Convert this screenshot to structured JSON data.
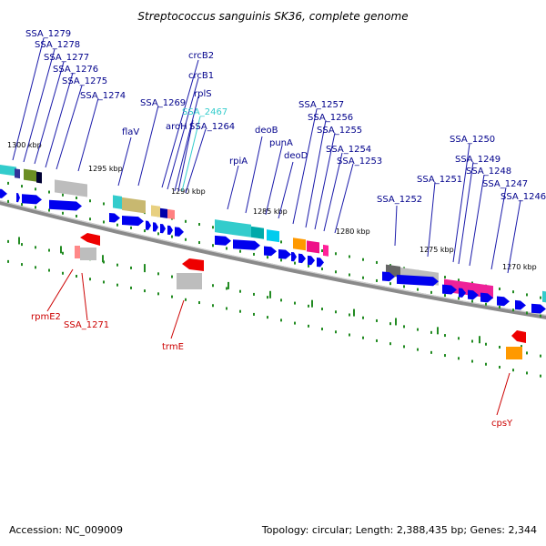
{
  "title": "Streptococcus sanguinis SK36, complete genome",
  "footer": {
    "accession": "Accession: NC_009009",
    "summary": "Topology: circular; Length: 2,388,435 bp; Genes: 2,344"
  },
  "colors": {
    "forward_label": "#00008b",
    "reverse_label": "#cc0000",
    "highlight_label": "#33cccc",
    "cds_forward": "#0000ee",
    "cds_reverse": "#ee0000",
    "tick": "#228b22",
    "backbone": "#888888"
  },
  "scale_labels": [
    "1300 kbp",
    "1295 kbp",
    "1290 kbp",
    "1285 kbp",
    "1280 kbp",
    "1275 kbp",
    "1270 kbp"
  ],
  "forward_genes": [
    {
      "name": "SSA_1279",
      "color": "navy"
    },
    {
      "name": "SSA_1278",
      "color": "navy"
    },
    {
      "name": "SSA_1277",
      "color": "navy"
    },
    {
      "name": "SSA_1276",
      "color": "navy"
    },
    {
      "name": "SSA_1275",
      "color": "navy"
    },
    {
      "name": "SSA_1274",
      "color": "navy"
    },
    {
      "name": "flaV",
      "color": "navy"
    },
    {
      "name": "SSA_1269",
      "color": "navy"
    },
    {
      "name": "crcB2",
      "color": "navy"
    },
    {
      "name": "crcB1",
      "color": "navy"
    },
    {
      "name": "rplS",
      "color": "navy"
    },
    {
      "name": "SSA_2467",
      "color": "cyan"
    },
    {
      "name": "aroH",
      "color": "navy"
    },
    {
      "name": "SSA_1264",
      "color": "navy"
    },
    {
      "name": "rpiA",
      "color": "navy"
    },
    {
      "name": "deoB",
      "color": "navy"
    },
    {
      "name": "punA",
      "color": "navy"
    },
    {
      "name": "deoD",
      "color": "navy"
    },
    {
      "name": "SSA_1257",
      "color": "navy"
    },
    {
      "name": "SSA_1256",
      "color": "navy"
    },
    {
      "name": "SSA_1255",
      "color": "navy"
    },
    {
      "name": "SSA_1254",
      "color": "navy"
    },
    {
      "name": "SSA_1253",
      "color": "navy"
    },
    {
      "name": "SSA_1252",
      "color": "navy"
    },
    {
      "name": "SSA_1251",
      "color": "navy"
    },
    {
      "name": "SSA_1250",
      "color": "navy"
    },
    {
      "name": "SSA_1249",
      "color": "navy"
    },
    {
      "name": "SSA_1248",
      "color": "navy"
    },
    {
      "name": "SSA_1247",
      "color": "navy"
    },
    {
      "name": "SSA_1246",
      "color": "navy"
    }
  ],
  "reverse_genes": [
    {
      "name": "rpmE2"
    },
    {
      "name": "SSA_1271"
    },
    {
      "name": "trmE"
    },
    {
      "name": "cpsY"
    }
  ]
}
